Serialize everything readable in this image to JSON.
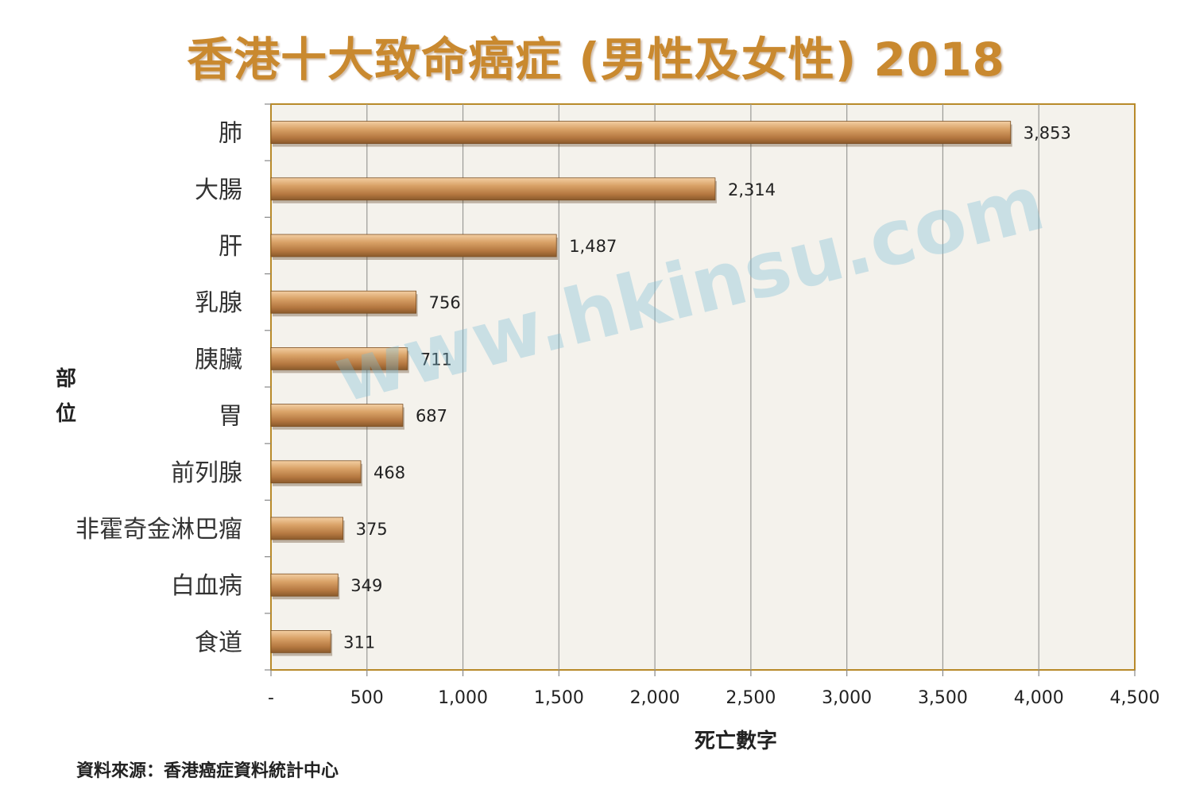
{
  "chart_data": {
    "type": "bar",
    "orientation": "horizontal",
    "title": "香港十大致命癌症 (男性及女性) 2018",
    "xlabel": "死亡數字",
    "ylabel": "部位",
    "categories": [
      "肺",
      "大腸",
      "肝",
      "乳腺",
      "胰臟",
      "胃",
      "前列腺",
      "非霍奇金淋巴瘤",
      "白血病",
      "食道"
    ],
    "values": [
      3853,
      2314,
      1487,
      756,
      711,
      687,
      468,
      375,
      349,
      311
    ],
    "value_labels": [
      "3,853",
      "2,314",
      "1,487",
      "756",
      "711",
      "687",
      "468",
      "375",
      "349",
      "311"
    ],
    "xlim": [
      0,
      4500
    ],
    "x_ticks": [
      0,
      500,
      1000,
      1500,
      2000,
      2500,
      3000,
      3500,
      4000,
      4500
    ],
    "x_tick_labels": [
      "-",
      "500",
      "1,000",
      "1,500",
      "2,000",
      "2,500",
      "3,000",
      "3,500",
      "4,000",
      "4,500"
    ],
    "grid": "vertical",
    "colors": {
      "bar": "#c8915a",
      "bar_dark": "#8a5a2b",
      "bar_light": "#f0c89a",
      "frame": "#b88a2a",
      "plot_bg": "#f4f2ec",
      "title": "#c9892f"
    }
  },
  "source": "資料來源：香港癌症資料統計中心",
  "watermark": "www.hkinsu.com"
}
